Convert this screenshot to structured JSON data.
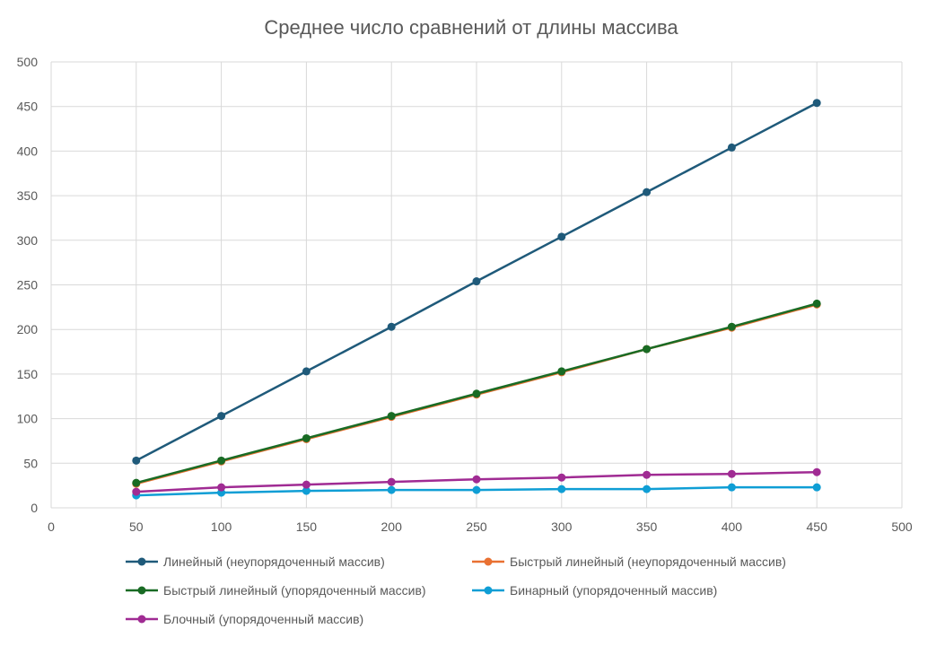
{
  "chart_data": {
    "type": "scatter",
    "title": "Среднее число сравнений от длины массива",
    "xlabel": "",
    "ylabel": "",
    "xlim": [
      0,
      500
    ],
    "ylim": [
      0,
      500
    ],
    "x_ticks": [
      0,
      50,
      100,
      150,
      200,
      250,
      300,
      350,
      400,
      450,
      500
    ],
    "y_ticks": [
      0,
      50,
      100,
      150,
      200,
      250,
      300,
      350,
      400,
      450,
      500
    ],
    "grid": true,
    "legend_position": "bottom",
    "x": [
      50,
      100,
      150,
      200,
      250,
      300,
      350,
      400,
      450
    ],
    "series": [
      {
        "name": "Линейный (неупорядоченный массив)",
        "color": "#1f5a7a",
        "values": [
          53,
          103,
          153,
          203,
          254,
          304,
          354,
          404,
          454
        ]
      },
      {
        "name": "Быстрый линейный (неупорядоченный массив)",
        "color": "#e97132",
        "values": [
          27,
          52,
          77,
          102,
          127,
          152,
          178,
          202,
          228
        ]
      },
      {
        "name": "Быстрый линейный (упорядоченный массив)",
        "color": "#196b24",
        "values": [
          28,
          53,
          78,
          103,
          128,
          153,
          178,
          203,
          229
        ]
      },
      {
        "name": "Бинарный (упорядоченный массив)",
        "color": "#0f9ed5",
        "values": [
          14,
          17,
          19,
          20,
          20,
          21,
          21,
          23,
          23
        ]
      },
      {
        "name": "Блочный (упорядоченный массив)",
        "color": "#a02b93",
        "values": [
          18,
          23,
          26,
          29,
          32,
          34,
          37,
          38,
          40
        ]
      }
    ]
  }
}
